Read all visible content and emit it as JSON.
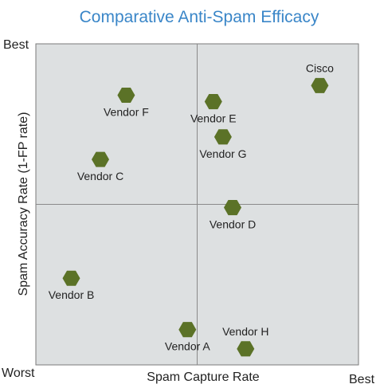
{
  "chart_data": {
    "type": "scatter",
    "title": "Comparative Anti-Spam Efficacy",
    "xlabel": "Spam Capture Rate",
    "ylabel": "Spam Accuracy Rate (1-FP rate)",
    "x_tick_labels": {
      "low": "Worst",
      "high": "Best"
    },
    "y_tick_labels": {
      "low": "Worst",
      "high": "Best"
    },
    "xlim": [
      0,
      1
    ],
    "ylim": [
      0,
      1
    ],
    "quadrant_divider": {
      "x": 0.5,
      "y": 0.5
    },
    "grid": false,
    "legend": "none",
    "points": [
      {
        "label": "Cisco",
        "x": 0.88,
        "y": 0.87,
        "label_pos": "above"
      },
      {
        "label": "Vendor F",
        "x": 0.28,
        "y": 0.84,
        "label_pos": "below"
      },
      {
        "label": "Vendor E",
        "x": 0.55,
        "y": 0.82,
        "label_pos": "below"
      },
      {
        "label": "Vendor G",
        "x": 0.58,
        "y": 0.71,
        "label_pos": "below"
      },
      {
        "label": "Vendor C",
        "x": 0.2,
        "y": 0.64,
        "label_pos": "below"
      },
      {
        "label": "Vendor D",
        "x": 0.61,
        "y": 0.49,
        "label_pos": "below"
      },
      {
        "label": "Vendor B",
        "x": 0.11,
        "y": 0.27,
        "label_pos": "below"
      },
      {
        "label": "Vendor A",
        "x": 0.47,
        "y": 0.11,
        "label_pos": "below"
      },
      {
        "label": "Vendor H",
        "x": 0.65,
        "y": 0.05,
        "label_pos": "above"
      }
    ]
  },
  "colors": {
    "title": "#3a86c8",
    "plot_background": "#dde0e1",
    "plot_border": "#7a7a7a",
    "divider": "#8a8a8a",
    "marker": "#5b7227",
    "text": "#222222"
  }
}
